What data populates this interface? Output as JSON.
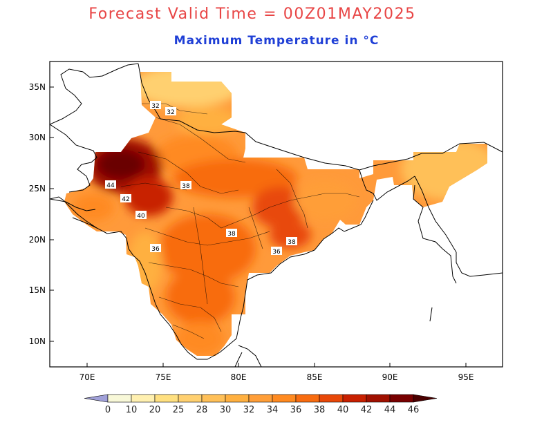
{
  "title": {
    "line1": "Forecast Valid Time = 00Z01MAY2025",
    "line2": "Maximum Temperature in °C",
    "line1_color": "#e84545",
    "line2_color": "#1f3fd6"
  },
  "map": {
    "region": "Indian subcontinent",
    "lon_ticks": [
      "70E",
      "75E",
      "80E",
      "85E",
      "90E",
      "95E"
    ],
    "lat_ticks": [
      "35N",
      "30N",
      "25N",
      "20N",
      "15N",
      "10N"
    ],
    "contour_labels": [
      {
        "text": "44"
      },
      {
        "text": "42"
      },
      {
        "text": "40"
      },
      {
        "text": "38"
      },
      {
        "text": "38"
      },
      {
        "text": "38"
      },
      {
        "text": "36"
      },
      {
        "text": "36"
      },
      {
        "text": "32"
      },
      {
        "text": "32"
      }
    ]
  },
  "colorbar": {
    "labels": [
      "0",
      "10",
      "20",
      "25",
      "28",
      "30",
      "32",
      "34",
      "36",
      "38",
      "40",
      "42",
      "44",
      "46"
    ],
    "colors": [
      "#f8f8d8",
      "#fff0b0",
      "#ffe080",
      "#ffd070",
      "#ffc058",
      "#ffb040",
      "#ff9e38",
      "#ff8a20",
      "#f86c10",
      "#e84808",
      "#c82000",
      "#a01000",
      "#780000"
    ],
    "below_color": "#a0a0d8",
    "above_color": "#4a0000"
  }
}
